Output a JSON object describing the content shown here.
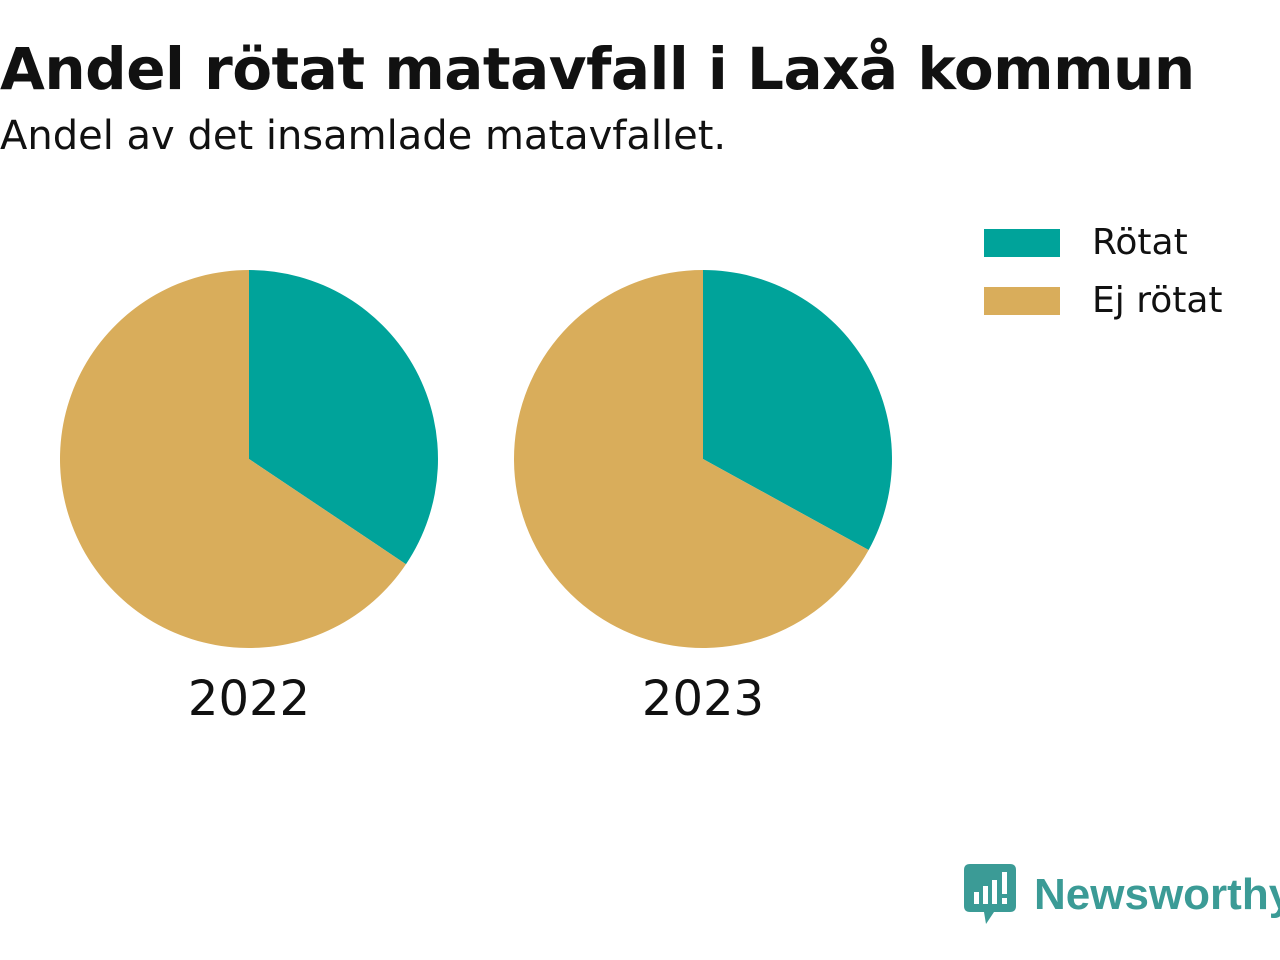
{
  "chart_data": {
    "type": "pie",
    "title": "Andel rötat matavfall i Laxå kommun",
    "subtitle": "Andel av det insamlade matavfallet.",
    "legend": [
      {
        "label": "Rötat",
        "color": "#00a39a"
      },
      {
        "label": "Ej rötat",
        "color": "#d9ad5b"
      }
    ],
    "legend_position": "top-right",
    "pies": [
      {
        "label": "2022",
        "slices": [
          {
            "name": "Rötat",
            "value": 34.4
          },
          {
            "name": "Ej rötat",
            "value": 65.6
          }
        ]
      },
      {
        "label": "2023",
        "slices": [
          {
            "name": "Rötat",
            "value": 33.0
          },
          {
            "name": "Ej rötat",
            "value": 67.0
          }
        ]
      }
    ]
  },
  "brand": {
    "name": "Newsworthy",
    "color": "#3b9b96"
  }
}
